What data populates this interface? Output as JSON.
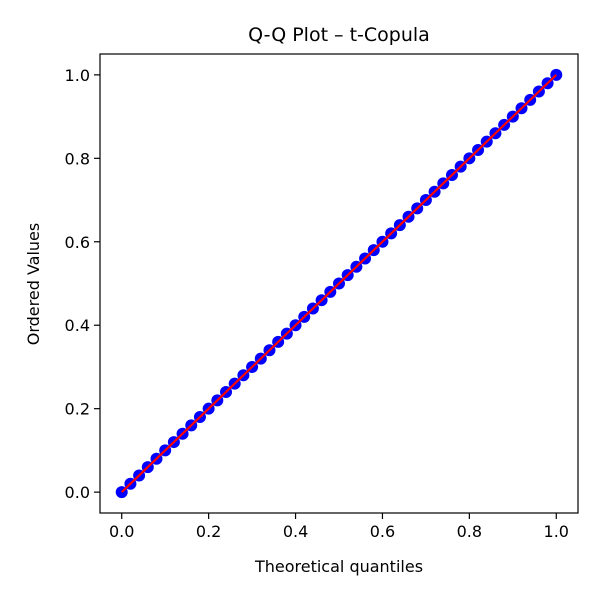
{
  "chart_data": {
    "type": "scatter",
    "title": "Q-Q Plot – t-Copula",
    "xlabel": "Theoretical quantiles",
    "ylabel": "Ordered Values",
    "xlim": [
      -0.05,
      1.05
    ],
    "ylim": [
      -0.05,
      1.05
    ],
    "xticks": [
      0.0,
      0.2,
      0.4,
      0.6,
      0.8,
      1.0
    ],
    "yticks": [
      0.0,
      0.2,
      0.4,
      0.6,
      0.8,
      1.0
    ],
    "xtick_labels": [
      "0.0",
      "0.2",
      "0.4",
      "0.6",
      "0.8",
      "1.0"
    ],
    "ytick_labels": [
      "0.0",
      "0.2",
      "0.4",
      "0.6",
      "0.8",
      "1.0"
    ],
    "grid": false,
    "series": [
      {
        "kind": "points",
        "color": "#0000ff",
        "x": [
          0.0,
          0.02,
          0.04,
          0.06,
          0.08,
          0.1,
          0.12,
          0.14,
          0.16,
          0.18,
          0.2,
          0.22,
          0.24,
          0.26,
          0.28,
          0.3,
          0.32,
          0.34,
          0.36,
          0.38,
          0.4,
          0.42,
          0.44,
          0.46,
          0.48,
          0.5,
          0.52,
          0.54,
          0.56,
          0.58,
          0.6,
          0.62,
          0.64,
          0.66,
          0.68,
          0.7,
          0.72,
          0.74,
          0.76,
          0.78,
          0.8,
          0.82,
          0.84,
          0.86,
          0.88,
          0.9,
          0.92,
          0.94,
          0.96,
          0.98,
          1.0
        ],
        "y": [
          0.0,
          0.02,
          0.04,
          0.06,
          0.08,
          0.1,
          0.12,
          0.14,
          0.16,
          0.18,
          0.2,
          0.22,
          0.24,
          0.26,
          0.28,
          0.3,
          0.32,
          0.34,
          0.36,
          0.38,
          0.4,
          0.42,
          0.44,
          0.46,
          0.48,
          0.5,
          0.52,
          0.54,
          0.56,
          0.58,
          0.6,
          0.62,
          0.64,
          0.66,
          0.68,
          0.7,
          0.72,
          0.74,
          0.76,
          0.78,
          0.8,
          0.82,
          0.84,
          0.86,
          0.88,
          0.9,
          0.92,
          0.94,
          0.96,
          0.98,
          1.0
        ]
      },
      {
        "kind": "reference-line",
        "color": "#ff0000",
        "x": [
          0.0,
          1.0
        ],
        "y": [
          0.0,
          1.0
        ]
      }
    ]
  }
}
